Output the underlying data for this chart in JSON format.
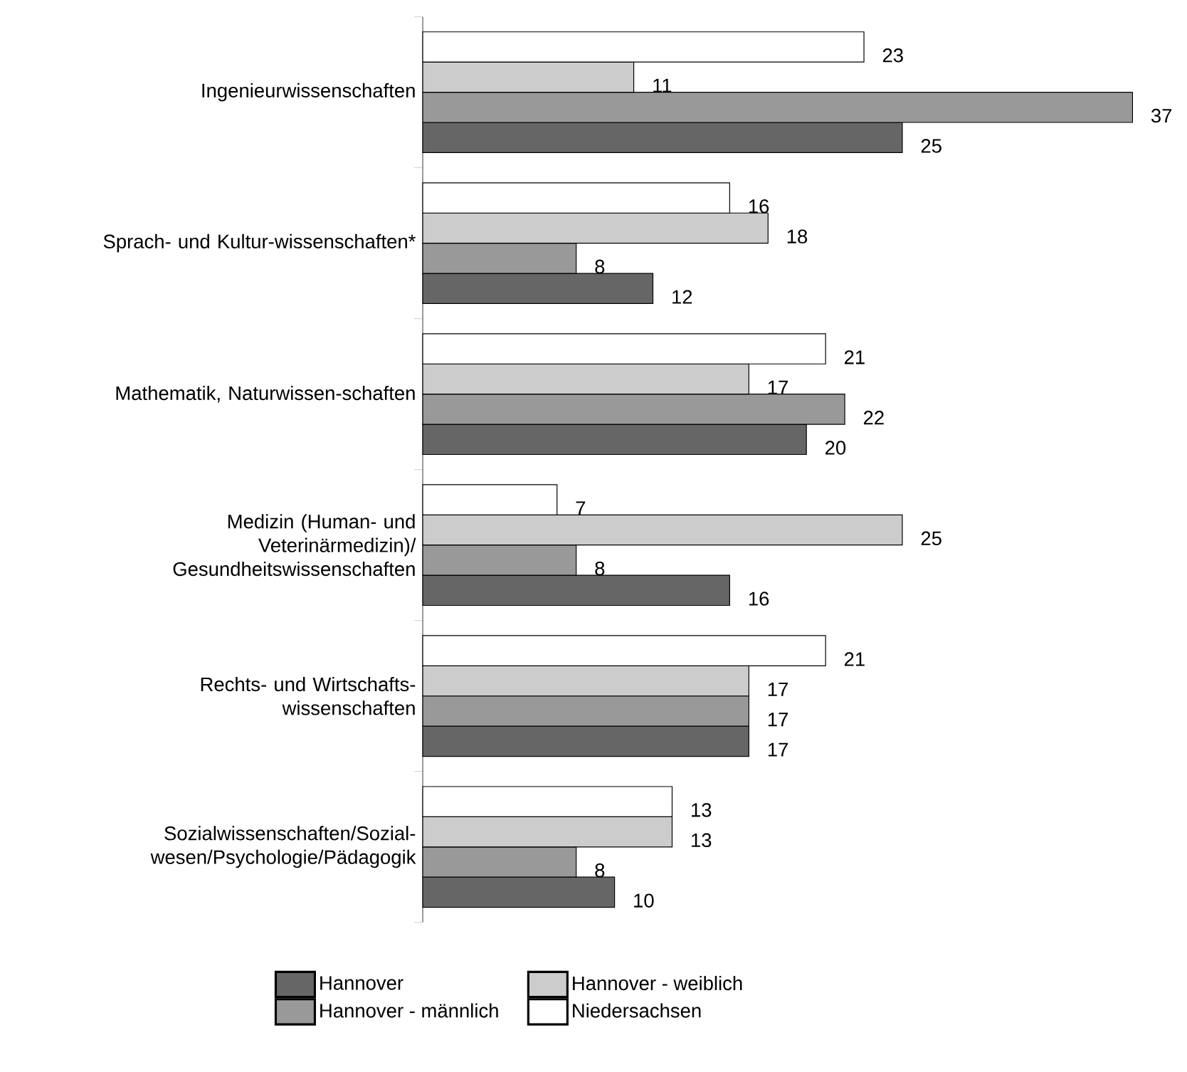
{
  "chart_data": {
    "type": "bar",
    "orientation": "horizontal",
    "data_labels": true,
    "legend": "bottom",
    "categories": [
      "Ingenieurwissenschaften",
      "Sprach- und Kultur-wissenschaften*",
      "Mathematik, Naturwissen-schaften",
      "Medizin (Human- und Veterinärmedizin)/ Gesundheitswissenschaften",
      "Rechts- und Wirtschafts-wissenschaften",
      "Sozialwissenschaften/Sozial-wesen/Psychologie/Pädagogik"
    ],
    "series": [
      {
        "name": "Hannover",
        "color": "#666666",
        "values": [
          25,
          12,
          20,
          16,
          17,
          10
        ]
      },
      {
        "name": "Hannover - männlich",
        "color": "#999999",
        "values": [
          37,
          8,
          22,
          8,
          17,
          8
        ]
      },
      {
        "name": "Hannover - weiblich",
        "color": "#cccccc",
        "values": [
          11,
          18,
          17,
          25,
          17,
          13
        ]
      },
      {
        "name": "Niedersachsen",
        "color": "#ffffff",
        "values": [
          23,
          16,
          21,
          7,
          21,
          13
        ]
      }
    ]
  }
}
